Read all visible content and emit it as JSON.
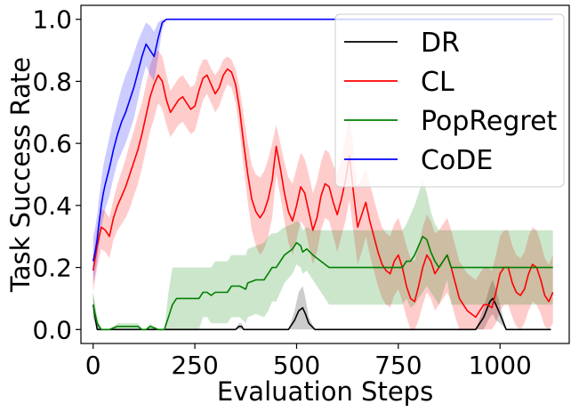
{
  "chart_data": {
    "type": "line",
    "xlabel": "Evaluation Steps",
    "ylabel": "Task Success Rate",
    "xlim": [
      -30,
      1170
    ],
    "ylim": [
      -0.045,
      1.045
    ],
    "xticks": [
      0,
      250,
      500,
      750,
      1000
    ],
    "yticks": [
      0.0,
      0.2,
      0.4,
      0.6,
      0.8,
      1.0
    ],
    "xtick_labels": [
      "0",
      "250",
      "500",
      "750",
      "1000"
    ],
    "ytick_labels": [
      "0.0",
      "0.2",
      "0.4",
      "0.6",
      "0.8",
      "1.0"
    ],
    "grid": false,
    "legend_position": "top-right",
    "series": [
      {
        "name": "DR",
        "color": "#000000",
        "x": [
          0,
          10,
          20,
          350,
          358,
          365,
          370,
          480,
          495,
          505,
          515,
          522,
          530,
          545,
          940,
          960,
          975,
          982,
          990,
          1000,
          1015,
          1125
        ],
        "y": [
          0.08,
          0.0,
          0.0,
          0.0,
          0.01,
          0.01,
          0.0,
          0.0,
          0.03,
          0.06,
          0.07,
          0.05,
          0.02,
          0.0,
          0.0,
          0.04,
          0.09,
          0.1,
          0.08,
          0.05,
          0.0,
          0.0
        ],
        "upper": [
          0.12,
          0.02,
          0.0,
          0.0,
          0.02,
          0.02,
          0.0,
          0.0,
          0.06,
          0.12,
          0.14,
          0.1,
          0.04,
          0.0,
          0.0,
          0.07,
          0.14,
          0.16,
          0.13,
          0.08,
          0.0,
          0.0
        ],
        "lower": [
          0.04,
          0.0,
          0.0,
          0.0,
          0.0,
          0.0,
          0.0,
          0.0,
          0.0,
          0.0,
          0.0,
          0.0,
          0.0,
          0.0,
          0.0,
          0.0,
          0.04,
          0.05,
          0.03,
          0.02,
          0.0,
          0.0
        ]
      },
      {
        "name": "CL",
        "color": "#ff0000",
        "x": [
          0,
          10,
          20,
          30,
          40,
          50,
          60,
          70,
          80,
          90,
          100,
          110,
          120,
          130,
          140,
          150,
          160,
          170,
          180,
          190,
          200,
          210,
          220,
          230,
          240,
          250,
          260,
          270,
          280,
          290,
          300,
          310,
          320,
          330,
          340,
          350,
          360,
          370,
          380,
          390,
          400,
          410,
          420,
          430,
          440,
          450,
          460,
          470,
          480,
          490,
          500,
          510,
          520,
          530,
          540,
          550,
          560,
          570,
          580,
          590,
          600,
          610,
          620,
          630,
          640,
          650,
          660,
          670,
          680,
          690,
          700,
          710,
          720,
          730,
          740,
          750,
          760,
          770,
          780,
          790,
          800,
          810,
          820,
          830,
          840,
          850,
          860,
          870,
          880,
          890,
          900,
          910,
          920,
          930,
          940,
          950,
          960,
          970,
          980,
          990,
          1000,
          1010,
          1020,
          1030,
          1040,
          1050,
          1060,
          1070,
          1080,
          1090,
          1100,
          1110,
          1120,
          1130
        ],
        "y": [
          0.19,
          0.27,
          0.33,
          0.32,
          0.3,
          0.36,
          0.4,
          0.43,
          0.46,
          0.5,
          0.54,
          0.58,
          0.63,
          0.69,
          0.75,
          0.79,
          0.82,
          0.8,
          0.74,
          0.7,
          0.72,
          0.74,
          0.75,
          0.73,
          0.71,
          0.72,
          0.77,
          0.81,
          0.82,
          0.79,
          0.76,
          0.78,
          0.82,
          0.84,
          0.83,
          0.79,
          0.71,
          0.6,
          0.5,
          0.42,
          0.38,
          0.36,
          0.38,
          0.42,
          0.48,
          0.59,
          0.52,
          0.44,
          0.38,
          0.35,
          0.4,
          0.46,
          0.44,
          0.38,
          0.32,
          0.36,
          0.43,
          0.47,
          0.46,
          0.41,
          0.37,
          0.42,
          0.48,
          0.56,
          0.44,
          0.33,
          0.37,
          0.41,
          0.35,
          0.3,
          0.25,
          0.21,
          0.19,
          0.18,
          0.22,
          0.24,
          0.2,
          0.14,
          0.1,
          0.09,
          0.14,
          0.2,
          0.24,
          0.22,
          0.18,
          0.2,
          0.22,
          0.24,
          0.2,
          0.15,
          0.1,
          0.08,
          0.06,
          0.05,
          0.04,
          0.06,
          0.08,
          0.08,
          0.07,
          0.12,
          0.18,
          0.2,
          0.2,
          0.15,
          0.12,
          0.11,
          0.13,
          0.18,
          0.21,
          0.2,
          0.16,
          0.11,
          0.09,
          0.12
        ],
        "upper": [
          0.24,
          0.33,
          0.39,
          0.38,
          0.36,
          0.42,
          0.47,
          0.51,
          0.55,
          0.6,
          0.64,
          0.69,
          0.73,
          0.79,
          0.85,
          0.89,
          0.9,
          0.88,
          0.82,
          0.77,
          0.79,
          0.81,
          0.82,
          0.8,
          0.78,
          0.79,
          0.84,
          0.87,
          0.87,
          0.84,
          0.82,
          0.84,
          0.87,
          0.88,
          0.87,
          0.84,
          0.78,
          0.69,
          0.6,
          0.53,
          0.5,
          0.49,
          0.51,
          0.55,
          0.6,
          0.66,
          0.6,
          0.54,
          0.49,
          0.47,
          0.52,
          0.57,
          0.55,
          0.5,
          0.44,
          0.48,
          0.54,
          0.58,
          0.57,
          0.53,
          0.5,
          0.55,
          0.62,
          0.7,
          0.58,
          0.46,
          0.49,
          0.52,
          0.47,
          0.42,
          0.37,
          0.33,
          0.31,
          0.3,
          0.34,
          0.36,
          0.32,
          0.27,
          0.23,
          0.22,
          0.27,
          0.33,
          0.37,
          0.35,
          0.31,
          0.32,
          0.34,
          0.36,
          0.32,
          0.27,
          0.22,
          0.2,
          0.18,
          0.17,
          0.16,
          0.18,
          0.2,
          0.2,
          0.19,
          0.24,
          0.3,
          0.32,
          0.32,
          0.27,
          0.24,
          0.23,
          0.25,
          0.3,
          0.33,
          0.32,
          0.28,
          0.23,
          0.21,
          0.24
        ],
        "lower": [
          0.12,
          0.2,
          0.26,
          0.25,
          0.23,
          0.29,
          0.32,
          0.34,
          0.36,
          0.39,
          0.43,
          0.47,
          0.52,
          0.58,
          0.64,
          0.68,
          0.73,
          0.71,
          0.66,
          0.62,
          0.64,
          0.66,
          0.67,
          0.65,
          0.63,
          0.64,
          0.69,
          0.74,
          0.76,
          0.73,
          0.7,
          0.72,
          0.76,
          0.79,
          0.78,
          0.73,
          0.64,
          0.52,
          0.41,
          0.32,
          0.27,
          0.24,
          0.26,
          0.3,
          0.36,
          0.5,
          0.43,
          0.35,
          0.28,
          0.24,
          0.29,
          0.35,
          0.33,
          0.27,
          0.21,
          0.25,
          0.32,
          0.36,
          0.35,
          0.3,
          0.25,
          0.3,
          0.35,
          0.42,
          0.31,
          0.21,
          0.25,
          0.3,
          0.24,
          0.19,
          0.14,
          0.1,
          0.08,
          0.07,
          0.11,
          0.13,
          0.09,
          0.04,
          0.0,
          0.0,
          0.03,
          0.08,
          0.12,
          0.1,
          0.06,
          0.08,
          0.1,
          0.12,
          0.09,
          0.04,
          0.0,
          0.0,
          0.0,
          0.0,
          0.0,
          0.0,
          0.0,
          0.0,
          0.0,
          0.02,
          0.06,
          0.08,
          0.08,
          0.04,
          0.01,
          0.0,
          0.02,
          0.06,
          0.09,
          0.08,
          0.05,
          0.01,
          0.0,
          0.02
        ]
      },
      {
        "name": "PopRegret",
        "color": "#008000",
        "x": [
          0,
          10,
          20,
          40,
          60,
          110,
          120,
          130,
          140,
          160,
          175,
          185,
          195,
          205,
          215,
          260,
          270,
          280,
          290,
          300,
          330,
          340,
          360,
          375,
          380,
          400,
          420,
          430,
          440,
          450,
          460,
          470,
          490,
          500,
          510,
          515,
          525,
          540,
          560,
          580,
          600,
          760,
          770,
          780,
          790,
          800,
          810,
          820,
          830,
          840,
          850,
          860,
          870,
          880,
          1130
        ],
        "y": [
          0.08,
          0.02,
          0.0,
          0.0,
          0.01,
          0.01,
          0.0,
          0.0,
          0.01,
          0.0,
          0.0,
          0.04,
          0.08,
          0.1,
          0.1,
          0.1,
          0.12,
          0.12,
          0.11,
          0.12,
          0.12,
          0.14,
          0.14,
          0.13,
          0.15,
          0.16,
          0.16,
          0.18,
          0.2,
          0.2,
          0.22,
          0.24,
          0.26,
          0.28,
          0.27,
          0.25,
          0.26,
          0.24,
          0.22,
          0.2,
          0.2,
          0.2,
          0.22,
          0.22,
          0.24,
          0.27,
          0.3,
          0.29,
          0.25,
          0.22,
          0.2,
          0.22,
          0.24,
          0.2,
          0.2
        ],
        "upper": [
          0.12,
          0.04,
          0.0,
          0.0,
          0.02,
          0.02,
          0.0,
          0.0,
          0.02,
          0.0,
          0.0,
          0.12,
          0.2,
          0.2,
          0.2,
          0.2,
          0.2,
          0.2,
          0.2,
          0.22,
          0.22,
          0.24,
          0.24,
          0.24,
          0.26,
          0.27,
          0.28,
          0.3,
          0.31,
          0.31,
          0.32,
          0.33,
          0.34,
          0.35,
          0.34,
          0.32,
          0.33,
          0.32,
          0.32,
          0.32,
          0.32,
          0.32,
          0.34,
          0.37,
          0.4,
          0.44,
          0.48,
          0.44,
          0.38,
          0.34,
          0.32,
          0.32,
          0.32,
          0.32,
          0.32
        ],
        "lower": [
          0.04,
          0.0,
          0.0,
          0.0,
          0.0,
          0.0,
          0.0,
          0.0,
          0.0,
          0.0,
          0.0,
          0.0,
          0.0,
          0.0,
          0.0,
          0.0,
          0.04,
          0.04,
          0.02,
          0.02,
          0.02,
          0.04,
          0.04,
          0.02,
          0.04,
          0.05,
          0.04,
          0.06,
          0.09,
          0.09,
          0.12,
          0.15,
          0.18,
          0.21,
          0.2,
          0.18,
          0.19,
          0.16,
          0.12,
          0.08,
          0.08,
          0.08,
          0.1,
          0.07,
          0.08,
          0.1,
          0.12,
          0.14,
          0.12,
          0.1,
          0.08,
          0.12,
          0.16,
          0.08,
          0.08
        ]
      },
      {
        "name": "CoDE",
        "color": "#0000ff",
        "x": [
          0,
          5,
          10,
          15,
          20,
          25,
          30,
          40,
          50,
          60,
          70,
          80,
          90,
          100,
          110,
          120,
          130,
          140,
          150,
          160,
          170,
          180,
          1130
        ],
        "y": [
          0.22,
          0.25,
          0.29,
          0.35,
          0.4,
          0.44,
          0.47,
          0.52,
          0.58,
          0.63,
          0.67,
          0.7,
          0.74,
          0.78,
          0.83,
          0.88,
          0.92,
          0.9,
          0.88,
          0.94,
          0.99,
          1.0,
          1.0
        ],
        "upper": [
          0.3,
          0.33,
          0.37,
          0.43,
          0.48,
          0.53,
          0.56,
          0.62,
          0.68,
          0.73,
          0.78,
          0.82,
          0.85,
          0.89,
          0.93,
          0.96,
          0.99,
          0.98,
          0.96,
          0.99,
          1.0,
          1.0,
          1.0
        ],
        "lower": [
          0.15,
          0.18,
          0.22,
          0.28,
          0.33,
          0.36,
          0.39,
          0.43,
          0.49,
          0.54,
          0.57,
          0.6,
          0.64,
          0.68,
          0.74,
          0.8,
          0.85,
          0.82,
          0.8,
          0.88,
          0.97,
          1.0,
          1.0
        ]
      }
    ]
  }
}
